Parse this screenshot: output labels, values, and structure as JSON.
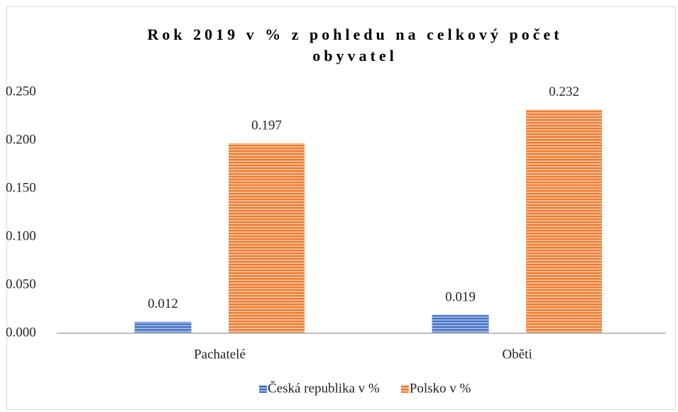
{
  "chart_data": {
    "type": "bar",
    "title": "Rok 2019 v % z pohledu na celkový počet obyvatel",
    "categories": [
      "Pachatelé",
      "Oběti"
    ],
    "series": [
      {
        "name": "Česká republika v %",
        "color": "#4472c4",
        "values": [
          0.012,
          0.019
        ]
      },
      {
        "name": "Polsko v %",
        "color": "#ed7d31",
        "values": [
          0.197,
          0.232
        ]
      }
    ],
    "ylim": [
      0,
      0.25
    ],
    "yticks": [
      {
        "value": 0,
        "label": "0.000"
      },
      {
        "value": 0.05,
        "label": "0.050"
      },
      {
        "value": 0.1,
        "label": "0.100"
      },
      {
        "value": 0.15,
        "label": "0.150"
      },
      {
        "value": 0.2,
        "label": "0.200"
      },
      {
        "value": 0.25,
        "label": "0.250"
      }
    ],
    "grid": false,
    "legend": "bottom"
  }
}
